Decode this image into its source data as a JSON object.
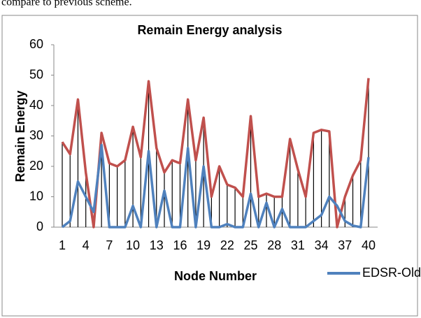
{
  "header_text": "compare to previous scheme.",
  "chart_data": {
    "type": "line",
    "title": "Remain Energy analysis",
    "x_label": "Node Number",
    "y_label": "Remain Energy",
    "categories": [
      1,
      null,
      null,
      4,
      null,
      null,
      7,
      null,
      null,
      10,
      null,
      null,
      13,
      null,
      null,
      16,
      null,
      null,
      19,
      null,
      null,
      22,
      null,
      null,
      25,
      null,
      null,
      28,
      null,
      null,
      31,
      null,
      null,
      34,
      null,
      null,
      37,
      null,
      null,
      40
    ],
    "series": [
      {
        "color": "#c0504d",
        "values": [
          28,
          24,
          42,
          18,
          0,
          31,
          21,
          20,
          22,
          33,
          23,
          48,
          26,
          18,
          22,
          21,
          42,
          22,
          36,
          10,
          20,
          14,
          13,
          10,
          36.5,
          10,
          11,
          10,
          10,
          29,
          19,
          10,
          31,
          32,
          31.5,
          0,
          10,
          17,
          22,
          49
        ]
      },
      {
        "name": "EDSR-Old",
        "color": "#4f81bd",
        "values": [
          0,
          2,
          15,
          10,
          5,
          27,
          0,
          0,
          0,
          7,
          0,
          25,
          0,
          12,
          0,
          0,
          26,
          0,
          20,
          0,
          0,
          1,
          0,
          0,
          11,
          0,
          8,
          0,
          6,
          0,
          0,
          0,
          2,
          4,
          10,
          7,
          2,
          0.5,
          0,
          23
        ]
      }
    ],
    "drop_lines": true,
    "ylim": [
      0,
      60
    ],
    "yticks": [
      0,
      10,
      20,
      30,
      40,
      50,
      60
    ],
    "grid": false
  }
}
